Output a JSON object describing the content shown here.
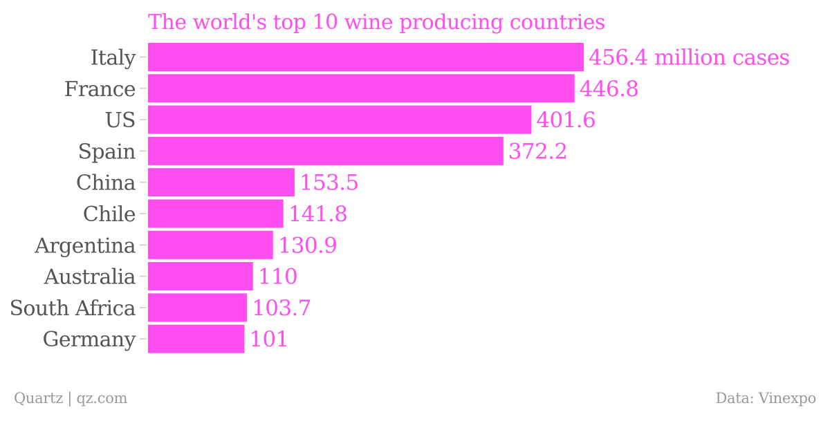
{
  "chart_data": {
    "type": "bar",
    "orientation": "horizontal",
    "title": "The world's top 10 wine producing countries",
    "unit_label": "million cases",
    "categories": [
      "Italy",
      "France",
      "US",
      "Spain",
      "China",
      "Chile",
      "Argentina",
      "Australia",
      "South Africa",
      "Germany"
    ],
    "values": [
      456.4,
      446.8,
      401.6,
      372.2,
      153.5,
      141.8,
      130.9,
      110,
      103.7,
      101
    ],
    "value_labels": [
      "456.4 million cases",
      "446.8",
      "401.6",
      "372.2",
      "153.5",
      "141.8",
      "130.9",
      "110",
      "103.7",
      "101"
    ],
    "xlim": [
      0,
      456.4
    ],
    "grid": false,
    "legend": "none"
  },
  "footer": {
    "source_left": "Quartz | qz.com",
    "source_right": "Data: Vinexpo"
  },
  "colors": {
    "bar": "#ff4df0",
    "title": "#ff4df0",
    "value_label": "#ff4df0",
    "category_label": "#555555",
    "tick": "#cccccc",
    "footer": "#999999"
  }
}
